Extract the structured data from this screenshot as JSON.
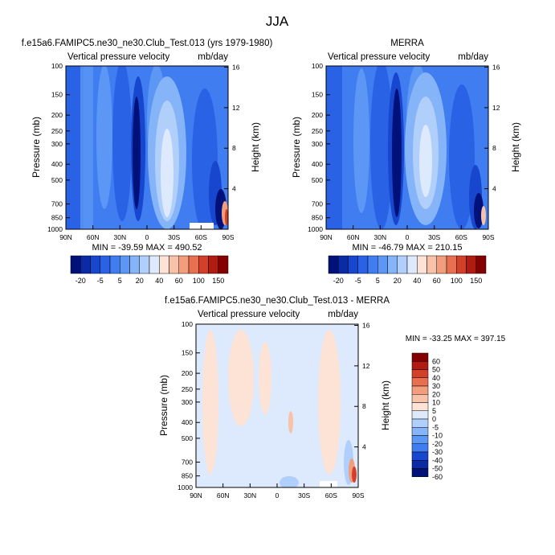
{
  "figure": {
    "title": "JJA"
  },
  "colors": {
    "model_scale": [
      "#00127a",
      "#0b2ba6",
      "#1746cf",
      "#2a62e6",
      "#3f7df1",
      "#5d97f5",
      "#86b4f8",
      "#b1cffb",
      "#dde9fd",
      "#fde3d6",
      "#f8c2a8",
      "#f29d7c",
      "#e86f4f",
      "#d2402a",
      "#b01b12",
      "#850000"
    ],
    "diff_scale": [
      "#850000",
      "#b01b12",
      "#d2402a",
      "#e86f4f",
      "#f29d7c",
      "#f8c2a8",
      "#fde3d6",
      "#dde9fd",
      "#b1cffb",
      "#86b4f8",
      "#5d97f5",
      "#3f7df1",
      "#1746cf",
      "#0b2ba6",
      "#00127a"
    ]
  },
  "chart_data": [
    {
      "type": "heatmap",
      "id": "model",
      "title": "f.e15a6.FAMIPC5.ne30_ne30.Club_Test.013 (yrs 1979-1980)",
      "subtitle_left": "Vertical pressure velocity",
      "subtitle_right": "mb/day",
      "xlabel": "",
      "ylabel": "Pressure (mb)",
      "ylabel_right": "Height (km)",
      "x_ticks": [
        "90N",
        "60N",
        "30N",
        "0",
        "30S",
        "60S",
        "90S"
      ],
      "y_ticks": [
        "100",
        "150",
        "200",
        "250",
        "300",
        "400",
        "500",
        "700",
        "850",
        "1000"
      ],
      "y_ticks_right": [
        "16",
        "12",
        "8",
        "4"
      ],
      "stats": "MIN = -39.59  MAX = 490.52",
      "colorbar_labels": [
        "-20",
        "-5",
        "5",
        "20",
        "40",
        "60",
        "100",
        "150"
      ]
    },
    {
      "type": "heatmap",
      "id": "merra",
      "title": "MERRA",
      "subtitle_left": "Vertical pressure velocity",
      "subtitle_right": "mb/day",
      "xlabel": "",
      "ylabel": "Pressure (mb)",
      "ylabel_right": "Height (km)",
      "x_ticks": [
        "90N",
        "60N",
        "30N",
        "0",
        "30S",
        "60S",
        "90S"
      ],
      "y_ticks": [
        "100",
        "150",
        "200",
        "250",
        "300",
        "400",
        "500",
        "700",
        "850",
        "1000"
      ],
      "y_ticks_right": [
        "16",
        "12",
        "8",
        "4"
      ],
      "stats": "MIN = -46.79  MAX = 210.15",
      "colorbar_labels": [
        "-20",
        "-5",
        "5",
        "20",
        "40",
        "60",
        "100",
        "150"
      ]
    },
    {
      "type": "heatmap",
      "id": "diff",
      "title": "f.e15a6.FAMIPC5.ne30_ne30.Club_Test.013 - MERRA",
      "subtitle_left": "Vertical pressure velocity",
      "subtitle_right": "mb/day",
      "xlabel": "",
      "ylabel": "Pressure (mb)",
      "ylabel_right": "Height (km)",
      "x_ticks": [
        "90N",
        "60N",
        "30N",
        "0",
        "30S",
        "60S",
        "90S"
      ],
      "y_ticks": [
        "100",
        "150",
        "200",
        "250",
        "300",
        "400",
        "500",
        "700",
        "850",
        "1000"
      ],
      "y_ticks_right": [
        "16",
        "12",
        "8",
        "4"
      ],
      "stats": "MIN = -33.25  MAX = 397.15",
      "colorbar_labels": [
        "60",
        "50",
        "40",
        "30",
        "20",
        "10",
        "5",
        "0",
        "-5",
        "-10",
        "-20",
        "-30",
        "-40",
        "-50",
        "-60"
      ]
    }
  ]
}
